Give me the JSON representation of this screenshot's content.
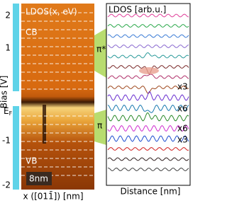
{
  "left_panel": {
    "title": "LDOS(x, eV)",
    "band_labels": {
      "cb": "CB",
      "vb": "VB",
      "pi_star": "π*",
      "pi": "π"
    },
    "fermi_label": "E",
    "fermi_subscript": "F",
    "scale_bar": "8nm",
    "y_axis": {
      "label": "Bias [V]",
      "ticks": [
        "2",
        "1",
        "-1",
        "-2"
      ]
    },
    "x_axis_label": "x ([011̄]) [nm]"
  },
  "right_panel": {
    "title": "LDOS [arb.u.]",
    "x_axis_label": "Distance [nm]",
    "scale_factors": [
      "x3",
      "x6",
      "x6",
      "x3"
    ]
  }
}
